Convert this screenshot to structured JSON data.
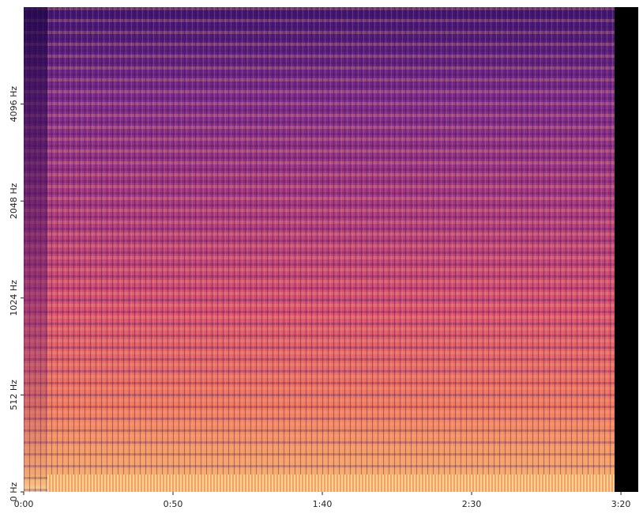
{
  "chart_data": {
    "type": "spectrogram",
    "xlim": [
      0,
      205.8
    ],
    "xticks": [
      {
        "value": 0,
        "label": "0:00"
      },
      {
        "value": 50,
        "label": "0:50"
      },
      {
        "value": 100,
        "label": "1:40"
      },
      {
        "value": 150,
        "label": "2:30"
      },
      {
        "value": 200,
        "label": "3:20"
      }
    ],
    "ylim": [
      0,
      8192
    ],
    "yscale": "symlog",
    "linthresh": 512,
    "yticks": [
      {
        "value": 0,
        "label": "0 Hz"
      },
      {
        "value": 512,
        "label": "512 Hz"
      },
      {
        "value": 1024,
        "label": "1024 Hz"
      },
      {
        "value": 2048,
        "label": "2048 Hz"
      },
      {
        "value": 4096,
        "label": "4096 Hz"
      }
    ]
  }
}
